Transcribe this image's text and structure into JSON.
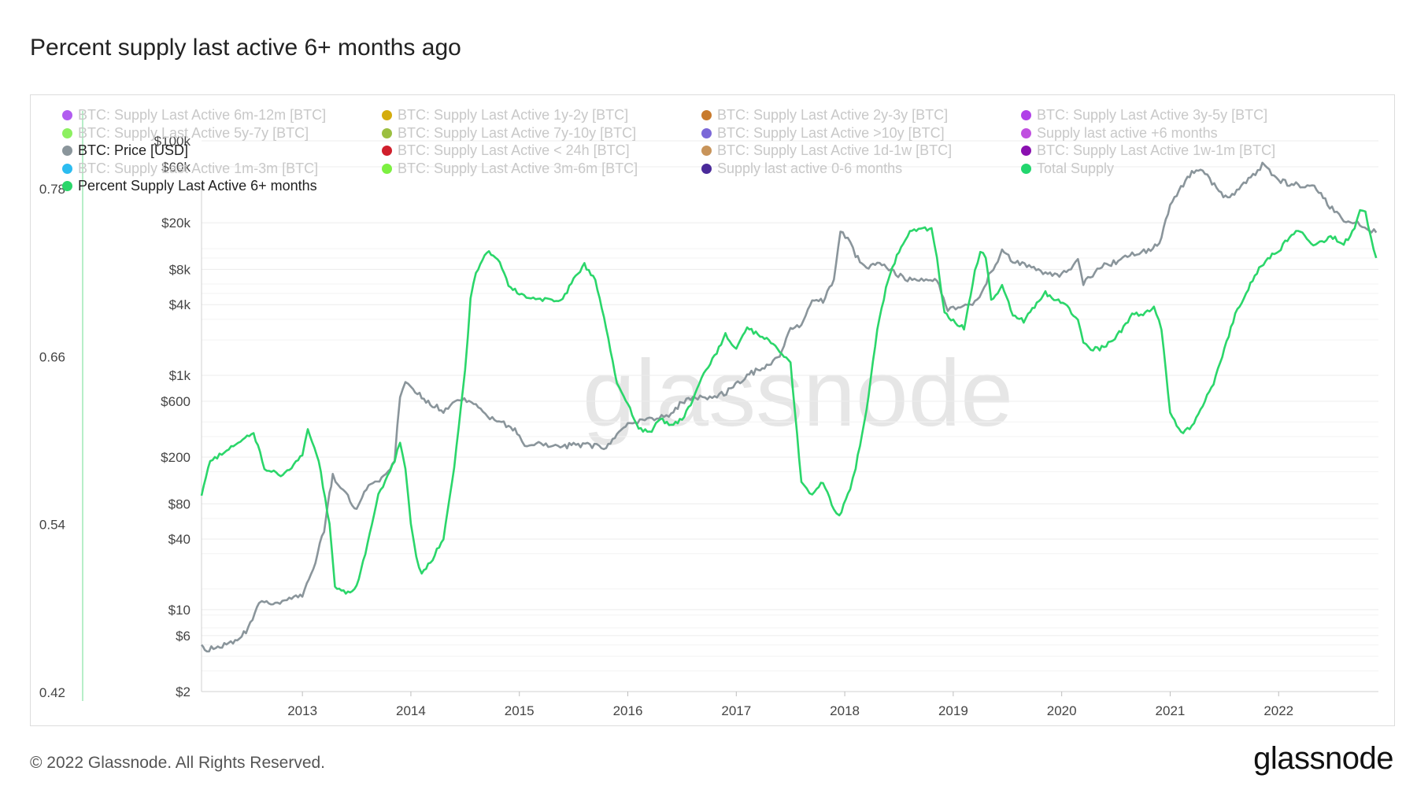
{
  "title": "Percent supply last active 6+ months ago",
  "footer": {
    "copyright": "© 2022 Glassnode. All Rights Reserved.",
    "logo": "glassnode"
  },
  "watermark": "glassnode",
  "legend": [
    {
      "label": "BTC: Supply Last Active 6m-12m [BTC]",
      "color": "#b15cf0",
      "active": false
    },
    {
      "label": "BTC: Supply Last Active 1y-2y [BTC]",
      "color": "#d4ac0d",
      "active": false
    },
    {
      "label": "BTC: Supply Last Active 2y-3y [BTC]",
      "color": "#c87a2c",
      "active": false
    },
    {
      "label": "BTC: Supply Last Active 3y-5y [BTC]",
      "color": "#b040e8",
      "active": false
    },
    {
      "label": "BTC: Supply Last Active 5y-7y [BTC]",
      "color": "#8cf060",
      "active": false
    },
    {
      "label": "BTC: Supply Last Active 7y-10y [BTC]",
      "color": "#9bbf40",
      "active": false
    },
    {
      "label": "BTC: Supply Last Active >10y [BTC]",
      "color": "#7b68d8",
      "active": false
    },
    {
      "label": "Supply last active +6 months",
      "color": "#c050e0",
      "active": false
    },
    {
      "label": "BTC: Price [USD]",
      "color": "#8a959b",
      "active": true
    },
    {
      "label": "BTC: Supply Last Active < 24h [BTC]",
      "color": "#d01f2c",
      "active": false
    },
    {
      "label": "BTC: Supply Last Active 1d-1w [BTC]",
      "color": "#c8945a",
      "active": false
    },
    {
      "label": "BTC: Supply Last Active 1w-1m [BTC]",
      "color": "#8a10b0",
      "active": false
    },
    {
      "label": "BTC: Supply Last Active 1m-3m [BTC]",
      "color": "#2bbcf0",
      "active": false
    },
    {
      "label": "BTC: Supply Last Active 3m-6m [BTC]",
      "color": "#7cf040",
      "active": false
    },
    {
      "label": "Supply last active 0-6 months",
      "color": "#4a2a9a",
      "active": false
    },
    {
      "label": "Total Supply",
      "color": "#22d66e",
      "active": false
    },
    {
      "label": "Percent Supply Last Active 6+ months",
      "color": "#2bd66a",
      "active": true
    }
  ],
  "chart_data": {
    "type": "line",
    "x_ticks": [
      "2013",
      "2014",
      "2015",
      "2016",
      "2017",
      "2018",
      "2019",
      "2020",
      "2021",
      "2022"
    ],
    "xlim": [
      2012.07,
      2022.92
    ],
    "left_axis": {
      "ticks": [
        "0.78",
        "0.66",
        "0.54",
        "0.42"
      ],
      "tick_values": [
        0.78,
        0.66,
        0.54,
        0.42
      ],
      "range": [
        0.42,
        0.78
      ]
    },
    "right_axis": {
      "ticks": [
        "$100k",
        "$60k",
        "$20k",
        "$8k",
        "$4k",
        "$1k",
        "$600",
        "$200",
        "$80",
        "$40",
        "$10",
        "$6",
        "$2"
      ],
      "tick_values": [
        100000,
        60000,
        20000,
        8000,
        4000,
        1000,
        600,
        200,
        80,
        40,
        10,
        6,
        2
      ],
      "scale": "log",
      "range": [
        2,
        100000
      ]
    },
    "grid": true,
    "legend_position": "top-left",
    "series": [
      {
        "name": "BTC: Price [USD]",
        "axis": "right",
        "color": "#8a959b",
        "x": [
          2012.07,
          2012.1,
          2012.2,
          2012.3,
          2012.4,
          2012.5,
          2012.6,
          2012.65,
          2012.75,
          2012.9,
          2013.0,
          2013.1,
          2013.2,
          2013.25,
          2013.28,
          2013.33,
          2013.4,
          2013.5,
          2013.55,
          2013.65,
          2013.75,
          2013.85,
          2013.9,
          2013.95,
          2014.0,
          2014.1,
          2014.2,
          2014.3,
          2014.45,
          2014.6,
          2014.75,
          2014.9,
          2015.0,
          2015.05,
          2015.2,
          2015.4,
          2015.5,
          2015.65,
          2015.8,
          2015.9,
          2016.0,
          2016.2,
          2016.4,
          2016.5,
          2016.6,
          2016.8,
          2016.95,
          2017.1,
          2017.2,
          2017.3,
          2017.4,
          2017.5,
          2017.6,
          2017.7,
          2017.8,
          2017.9,
          2017.96,
          2018.05,
          2018.1,
          2018.2,
          2018.3,
          2018.45,
          2018.6,
          2018.75,
          2018.85,
          2018.95,
          2019.0,
          2019.2,
          2019.35,
          2019.45,
          2019.55,
          2019.7,
          2019.85,
          2020.0,
          2020.15,
          2020.2,
          2020.35,
          2020.5,
          2020.65,
          2020.8,
          2020.9,
          2021.0,
          2021.1,
          2021.2,
          2021.3,
          2021.45,
          2021.55,
          2021.7,
          2021.85,
          2022.0,
          2022.1,
          2022.2,
          2022.35,
          2022.45,
          2022.6,
          2022.75,
          2022.9
        ],
        "y": [
          5,
          4.5,
          4.8,
          5,
          5.3,
          7,
          11,
          12,
          11.5,
          12.5,
          13.5,
          22,
          48,
          100,
          140,
          110,
          100,
          70,
          95,
          120,
          135,
          190,
          650,
          900,
          800,
          650,
          560,
          500,
          620,
          580,
          420,
          370,
          320,
          250,
          260,
          240,
          260,
          250,
          240,
          310,
          380,
          420,
          460,
          600,
          640,
          650,
          750,
          1000,
          1100,
          1250,
          1400,
          2500,
          2700,
          4200,
          4300,
          6500,
          17000,
          14000,
          10500,
          8000,
          9500,
          7500,
          6500,
          6400,
          6300,
          3600,
          3700,
          4100,
          7600,
          11500,
          9600,
          8500,
          7200,
          7200,
          9500,
          6000,
          8500,
          9200,
          11000,
          11500,
          13500,
          29000,
          40000,
          55000,
          58000,
          36000,
          32000,
          44000,
          62000,
          47000,
          42000,
          42000,
          39000,
          29000,
          21000,
          19500,
          16500
        ]
      },
      {
        "name": "Percent Supply Last Active 6+ months",
        "axis": "left",
        "color": "#2bd66a",
        "x": [
          2012.07,
          2012.15,
          2012.3,
          2012.45,
          2012.55,
          2012.65,
          2012.8,
          2012.9,
          2013.0,
          2013.05,
          2013.15,
          2013.25,
          2013.3,
          2013.4,
          2013.5,
          2013.6,
          2013.7,
          2013.85,
          2013.9,
          2013.95,
          2014.0,
          2014.05,
          2014.1,
          2014.2,
          2014.3,
          2014.4,
          2014.5,
          2014.55,
          2014.6,
          2014.7,
          2014.8,
          2014.9,
          2015.0,
          2015.15,
          2015.3,
          2015.4,
          2015.5,
          2015.6,
          2015.7,
          2015.8,
          2015.9,
          2016.0,
          2016.1,
          2016.2,
          2016.3,
          2016.4,
          2016.5,
          2016.6,
          2016.7,
          2016.8,
          2016.9,
          2017.0,
          2017.1,
          2017.2,
          2017.3,
          2017.4,
          2017.5,
          2017.6,
          2017.65,
          2017.7,
          2017.8,
          2017.9,
          2017.95,
          2018.05,
          2018.1,
          2018.2,
          2018.3,
          2018.4,
          2018.5,
          2018.6,
          2018.7,
          2018.8,
          2018.85,
          2018.92,
          2019.0,
          2019.1,
          2019.2,
          2019.25,
          2019.3,
          2019.35,
          2019.45,
          2019.55,
          2019.65,
          2019.75,
          2019.85,
          2019.95,
          2020.05,
          2020.15,
          2020.2,
          2020.25,
          2020.35,
          2020.45,
          2020.55,
          2020.65,
          2020.75,
          2020.85,
          2020.92,
          2021.0,
          2021.1,
          2021.2,
          2021.3,
          2021.4,
          2021.5,
          2021.6,
          2021.7,
          2021.8,
          2021.9,
          2022.0,
          2022.1,
          2022.2,
          2022.3,
          2022.4,
          2022.5,
          2022.6,
          2022.7,
          2022.75,
          2022.8,
          2022.85,
          2022.9
        ],
        "y": [
          0.56,
          0.585,
          0.592,
          0.6,
          0.605,
          0.58,
          0.575,
          0.58,
          0.59,
          0.608,
          0.585,
          0.54,
          0.495,
          0.49,
          0.495,
          0.525,
          0.56,
          0.585,
          0.598,
          0.58,
          0.54,
          0.515,
          0.505,
          0.515,
          0.53,
          0.58,
          0.65,
          0.7,
          0.72,
          0.735,
          0.73,
          0.71,
          0.705,
          0.7,
          0.7,
          0.7,
          0.715,
          0.725,
          0.715,
          0.68,
          0.64,
          0.625,
          0.608,
          0.605,
          0.615,
          0.61,
          0.615,
          0.628,
          0.648,
          0.66,
          0.675,
          0.665,
          0.68,
          0.675,
          0.672,
          0.662,
          0.655,
          0.57,
          0.565,
          0.56,
          0.57,
          0.55,
          0.545,
          0.565,
          0.58,
          0.62,
          0.68,
          0.715,
          0.735,
          0.748,
          0.752,
          0.75,
          0.73,
          0.69,
          0.685,
          0.68,
          0.72,
          0.735,
          0.73,
          0.7,
          0.71,
          0.69,
          0.685,
          0.695,
          0.705,
          0.7,
          0.695,
          0.685,
          0.67,
          0.665,
          0.665,
          0.67,
          0.678,
          0.69,
          0.69,
          0.695,
          0.68,
          0.62,
          0.605,
          0.61,
          0.625,
          0.64,
          0.665,
          0.69,
          0.705,
          0.72,
          0.73,
          0.735,
          0.745,
          0.75,
          0.74,
          0.742,
          0.745,
          0.74,
          0.75,
          0.765,
          0.762,
          0.745,
          0.73
        ]
      }
    ]
  }
}
